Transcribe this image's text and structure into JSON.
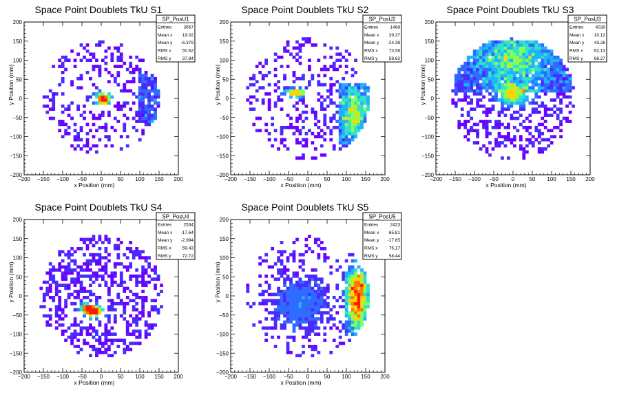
{
  "chart_data": [
    {
      "type": "heatmap",
      "title": "Space Point Doublets TkU S1",
      "xlabel": "x Position (mm)",
      "ylabel": "y Position (mm)",
      "xlim": [
        -200,
        200
      ],
      "ylim": [
        -200,
        200
      ],
      "xticks": [
        "−200",
        "−150",
        "−100",
        "−50",
        "0",
        "50",
        "100",
        "150",
        "200"
      ],
      "yticks": [
        "200",
        "150",
        "100",
        "50",
        "0",
        "−50",
        "−100",
        "−150",
        "−200"
      ],
      "stats": {
        "name": "SP_PosU1",
        "rows": [
          [
            "Entries",
            "3567"
          ],
          [
            "Mean x",
            "19.02"
          ],
          [
            "Mean y",
            "-6.379"
          ],
          [
            "RMS x",
            "50.62"
          ],
          [
            "RMS y",
            "37.84"
          ]
        ]
      },
      "distribution": {
        "disk_radius": 150,
        "background_density": 0.45,
        "hotspots": [
          {
            "x": 5,
            "y": 0,
            "sx": 14,
            "sy": 12,
            "amp": 1.0
          }
        ],
        "bands": [
          {
            "x0": 100,
            "x1": 160,
            "y0": -60,
            "y1": 60,
            "density": 0.85
          }
        ]
      }
    },
    {
      "type": "heatmap",
      "title": "Space Point Doublets TkU S2",
      "xlabel": "x Position (mm)",
      "ylabel": "y Position (mm)",
      "xlim": [
        -200,
        200
      ],
      "ylim": [
        -200,
        200
      ],
      "xticks": [
        "−200",
        "−150",
        "−100",
        "−50",
        "0",
        "50",
        "100",
        "150",
        "200"
      ],
      "yticks": [
        "200",
        "150",
        "100",
        "50",
        "0",
        "−50",
        "−100",
        "−150",
        "−200"
      ],
      "stats": {
        "name": "SP_PosU2",
        "rows": [
          [
            "Entries",
            "1468"
          ],
          [
            "Mean x",
            "39.37"
          ],
          [
            "Mean y",
            "-24.38"
          ],
          [
            "RMS x",
            "73.58"
          ],
          [
            "RMS y",
            "58.62"
          ]
        ]
      },
      "distribution": {
        "disk_radius": 160,
        "background_density": 0.5,
        "hotspots": [
          {
            "x": -30,
            "y": 15,
            "sx": 22,
            "sy": 8,
            "amp": 0.75
          },
          {
            "x": 120,
            "y": -40,
            "sx": 25,
            "sy": 45,
            "amp": 0.45
          }
        ],
        "bands": [
          {
            "x0": 80,
            "x1": 160,
            "y0": -120,
            "y1": 40,
            "density": 0.9
          }
        ]
      }
    },
    {
      "type": "heatmap",
      "title": "Space Point Doublets TkU S3",
      "xlabel": "x Position (mm)",
      "ylabel": "y Position (mm)",
      "xlim": [
        -200,
        200
      ],
      "ylim": [
        -200,
        200
      ],
      "xticks": [
        "−200",
        "−150",
        "−100",
        "−50",
        "0",
        "50",
        "100",
        "150",
        "200"
      ],
      "yticks": [
        "200",
        "150",
        "100",
        "50",
        "0",
        "−50",
        "−100",
        "−150",
        "−200"
      ],
      "stats": {
        "name": "SP_PosU3",
        "rows": [
          [
            "Entries",
            "4039"
          ],
          [
            "Mean x",
            "10.12"
          ],
          [
            "Mean y",
            "43.26"
          ],
          [
            "RMS x",
            "62.13"
          ],
          [
            "RMS y",
            "66.27"
          ]
        ]
      },
      "distribution": {
        "disk_radius": 160,
        "background_density": 0.7,
        "hotspots": [
          {
            "x": 0,
            "y": 10,
            "sx": 30,
            "sy": 20,
            "amp": 0.6
          },
          {
            "x": 0,
            "y": 100,
            "sx": 60,
            "sy": 40,
            "amp": 0.35
          }
        ],
        "bands": [
          {
            "x0": -150,
            "x1": 150,
            "y0": 20,
            "y1": 150,
            "density": 0.95
          }
        ]
      }
    },
    {
      "type": "heatmap",
      "title": "Space Point Doublets TkU S4",
      "xlabel": "x Position (mm)",
      "ylabel": "y Position (mm)",
      "xlim": [
        -200,
        200
      ],
      "ylim": [
        -200,
        200
      ],
      "xticks": [
        "−200",
        "−150",
        "−100",
        "−50",
        "0",
        "50",
        "100",
        "150",
        "200"
      ],
      "yticks": [
        "200",
        "150",
        "100",
        "50",
        "0",
        "−50",
        "−100",
        "−150",
        "−200"
      ],
      "stats": {
        "name": "SP_PosU4",
        "rows": [
          [
            "Entries",
            "2534"
          ],
          [
            "Mean x",
            "-17.64"
          ],
          [
            "Mean y",
            "-2.994"
          ],
          [
            "RMS x",
            "59.43"
          ],
          [
            "RMS y",
            "72.72"
          ]
        ]
      },
      "distribution": {
        "disk_radius": 160,
        "background_density": 0.75,
        "hotspots": [
          {
            "x": -20,
            "y": -40,
            "sx": 18,
            "sy": 12,
            "amp": 0.95
          },
          {
            "x": -40,
            "y": -30,
            "sx": 12,
            "sy": 8,
            "amp": 0.5
          }
        ],
        "bands": []
      }
    },
    {
      "type": "heatmap",
      "title": "Space Point Doublets TkU S5",
      "xlabel": "x Position (mm)",
      "ylabel": "y Position (mm)",
      "xlim": [
        -200,
        200
      ],
      "ylim": [
        -200,
        200
      ],
      "xticks": [
        "−200",
        "−150",
        "−100",
        "−50",
        "0",
        "50",
        "100",
        "150",
        "200"
      ],
      "yticks": [
        "200",
        "150",
        "100",
        "50",
        "0",
        "−50",
        "−100",
        "−150",
        "−200"
      ],
      "stats": {
        "name": "SP_PosU5",
        "rows": [
          [
            "Entries",
            "2423"
          ],
          [
            "Mean x",
            "65.81"
          ],
          [
            "Mean y",
            "-17.65"
          ],
          [
            "RMS x",
            "75.17"
          ],
          [
            "RMS y",
            "58.44"
          ]
        ]
      },
      "distribution": {
        "disk_radius": 160,
        "background_density": 0.45,
        "hotspots": [
          {
            "x": 130,
            "y": 0,
            "sx": 18,
            "sy": 60,
            "amp": 0.7
          },
          {
            "x": -20,
            "y": -20,
            "sx": 50,
            "sy": 50,
            "amp": 0.2
          }
        ],
        "bands": [
          {
            "x0": 100,
            "x1": 160,
            "y0": -100,
            "y1": 60,
            "density": 0.95
          }
        ]
      }
    }
  ],
  "colors": {
    "palette": [
      "#6a00ff",
      "#4a2bff",
      "#2f6bff",
      "#1fb2ff",
      "#33e0c8",
      "#7fff5a",
      "#ffd400",
      "#ff7a00",
      "#ff1a00"
    ],
    "axis": "#000000",
    "background": "#ffffff"
  }
}
